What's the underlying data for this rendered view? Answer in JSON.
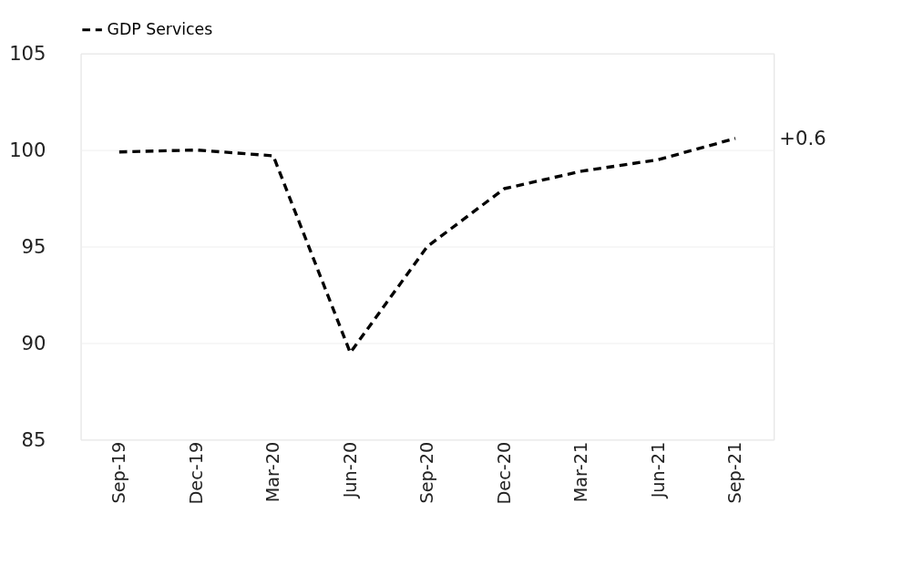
{
  "chart_data": {
    "type": "line",
    "categories": [
      "Sep-19",
      "Dec-19",
      "Mar-20",
      "Jun-20",
      "Sep-20",
      "Dec-20",
      "Mar-21",
      "Jun-21",
      "Sep-21"
    ],
    "series": [
      {
        "name": "GDP Services",
        "color": "#000000",
        "values": [
          99.9,
          100.0,
          99.7,
          89.5,
          95.0,
          98.0,
          98.9,
          99.5,
          100.6
        ]
      }
    ],
    "ylim": [
      85,
      105
    ],
    "yticks": [
      85,
      90,
      95,
      100,
      105
    ],
    "annotations": [
      {
        "text": "+0.6",
        "x": "Sep-21",
        "y": 100.6
      }
    ],
    "grid": "y",
    "legend": "top",
    "line_style": "dashed",
    "marker": "none"
  }
}
